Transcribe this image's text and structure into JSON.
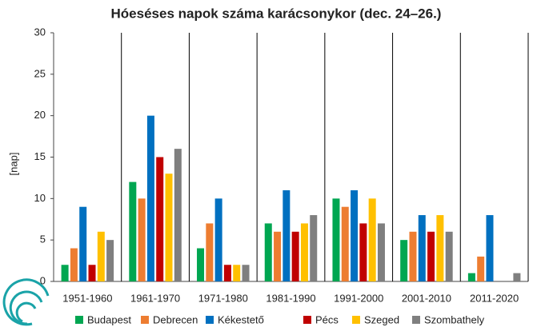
{
  "chart_data": {
    "type": "bar",
    "title": "Hóeséses napok száma karácsonykor  (dec. 24–26.)",
    "y_label": "[nap]",
    "categories": [
      "1951-1960",
      "1961-1970",
      "1971-1980",
      "1981-1990",
      "1991-2000",
      "2001-2010",
      "2011-2020"
    ],
    "series": [
      {
        "name": "Budapest",
        "color": "#00a651",
        "values": [
          2,
          12,
          4,
          7,
          10,
          5,
          1
        ]
      },
      {
        "name": "Debrecen",
        "color": "#ed7d31",
        "values": [
          4,
          10,
          7,
          6,
          9,
          6,
          3
        ]
      },
      {
        "name": "Kékestető",
        "color": "#0070c0",
        "values": [
          9,
          20,
          10,
          11,
          11,
          8,
          8
        ]
      },
      {
        "name": "Pécs",
        "color": "#c00000",
        "values": [
          2,
          15,
          2,
          6,
          7,
          6,
          0
        ]
      },
      {
        "name": "Szeged",
        "color": "#ffc000",
        "values": [
          6,
          13,
          2,
          7,
          10,
          8,
          0
        ]
      },
      {
        "name": "Szombathely",
        "color": "#7f7f7f",
        "values": [
          5,
          16,
          2,
          8,
          7,
          6,
          1
        ]
      }
    ],
    "ylim": [
      0,
      30
    ],
    "yticks": [
      0,
      5,
      10,
      15,
      20,
      25,
      30
    ]
  }
}
